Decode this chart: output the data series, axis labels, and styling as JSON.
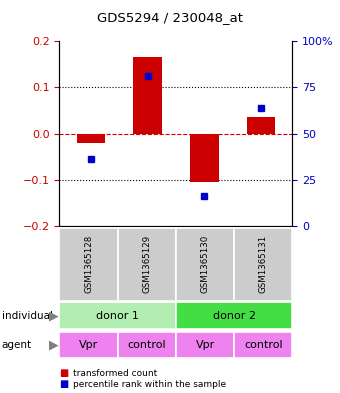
{
  "title": "GDS5294 / 230048_at",
  "samples": [
    "GSM1365128",
    "GSM1365129",
    "GSM1365130",
    "GSM1365131"
  ],
  "red_values": [
    -0.02,
    0.165,
    -0.105,
    0.035
  ],
  "blue_values": [
    -0.055,
    0.125,
    -0.135,
    0.055
  ],
  "ylim_left": [
    -0.2,
    0.2
  ],
  "ylim_right": [
    0,
    100
  ],
  "yticks_left": [
    -0.2,
    -0.1,
    0.0,
    0.1,
    0.2
  ],
  "yticks_right": [
    0,
    25,
    50,
    75,
    100
  ],
  "yticks_right_labels": [
    "0",
    "25",
    "50",
    "75",
    "100%"
  ],
  "donor_groups": [
    {
      "label": "donor 1",
      "cols": [
        0,
        1
      ],
      "color": "#B2EEB2"
    },
    {
      "label": "donor 2",
      "cols": [
        2,
        3
      ],
      "color": "#44DD44"
    }
  ],
  "agent_groups": [
    {
      "label": "Vpr",
      "col": 0,
      "color": "#EE82EE"
    },
    {
      "label": "control",
      "col": 1,
      "color": "#EE82EE"
    },
    {
      "label": "Vpr",
      "col": 2,
      "color": "#EE82EE"
    },
    {
      "label": "control",
      "col": 3,
      "color": "#EE82EE"
    }
  ],
  "red_color": "#CC0000",
  "blue_color": "#0000CC",
  "bar_width": 0.5,
  "sample_box_color": "#CCCCCC",
  "legend_red_label": "transformed count",
  "legend_blue_label": "percentile rank within the sample",
  "left_ylabel_color": "#CC0000",
  "right_ylabel_color": "#0000CC",
  "figsize": [
    3.4,
    3.93
  ],
  "dpi": 100
}
